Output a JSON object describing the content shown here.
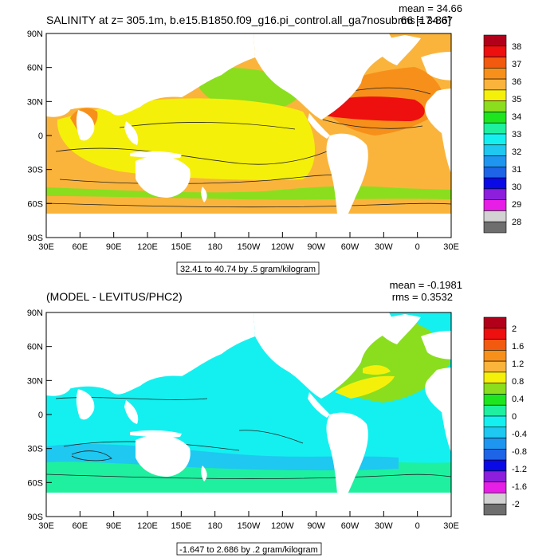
{
  "panels": [
    {
      "title": "SALINITY at z= 305.1m, b.e15.B1850.f09_g16.pi_control.all_ga7nosub.66 [17-86]",
      "mean_label": "mean = 34.66",
      "rms_label": "rms = 34.67",
      "contour_info": "32.41 to 40.74 by .5 gram/kilogram",
      "colorbar": {
        "labels": [
          "38",
          "37",
          "36",
          "35",
          "34",
          "33",
          "32",
          "31",
          "30",
          "29",
          "28"
        ],
        "colors": [
          "#b3001a",
          "#ee0f0f",
          "#f25a0f",
          "#f7901a",
          "#fab43c",
          "#f5f00a",
          "#8ade1e",
          "#1ee61e",
          "#1ef0a0",
          "#14f0f0",
          "#1ec8f0",
          "#1e96f0",
          "#1e64e6",
          "#0a0ae6",
          "#8c1edc",
          "#e61ee6",
          "#d2d2d2",
          "#6e6e6e"
        ]
      }
    },
    {
      "title": "(MODEL - LEVITUS/PHC2)",
      "mean_label": "mean = -0.1981",
      "rms_label": "rms = 0.3532",
      "contour_info": "-1.647 to 2.686 by .2 gram/kilogram",
      "colorbar": {
        "labels": [
          "2",
          "1.6",
          "1.2",
          "0.8",
          "0.4",
          "0",
          "-0.4",
          "-0.8",
          "-1.2",
          "-1.6",
          "-2"
        ],
        "colors": [
          "#b3001a",
          "#ee0f0f",
          "#f25a0f",
          "#f7901a",
          "#fab43c",
          "#f5f00a",
          "#8ade1e",
          "#1ee61e",
          "#1ef0a0",
          "#14f0f0",
          "#1ec8f0",
          "#1e96f0",
          "#1e64e6",
          "#0a0ae6",
          "#8c1edc",
          "#e61ee6",
          "#d2d2d2",
          "#6e6e6e"
        ]
      }
    }
  ],
  "axes": {
    "lat_labels": [
      "90N",
      "60N",
      "30N",
      "0",
      "30S",
      "60S",
      "90S"
    ],
    "lon_labels": [
      "30E",
      "60E",
      "90E",
      "120E",
      "150E",
      "180",
      "150W",
      "120W",
      "90W",
      "60W",
      "30W",
      "0",
      "30E"
    ]
  },
  "fill_colors": {
    "land": "#ffffff",
    "top_base": "#fab43c",
    "top_pacific": "#f5f00a",
    "top_south": "#fab43c",
    "top_southern_band": "#8ade1e",
    "top_north_pacific": "#8ade1e",
    "top_atlantic": "#f7901a",
    "top_atlantic_core": "#ee0f0f",
    "bot_base": "#14f0f0",
    "bot_southern": "#1ef0a0",
    "bot_south_low": "#1ec8f0",
    "bot_atlantic": "#8ade1e",
    "bot_atlantic_hot": "#f5f00a"
  }
}
